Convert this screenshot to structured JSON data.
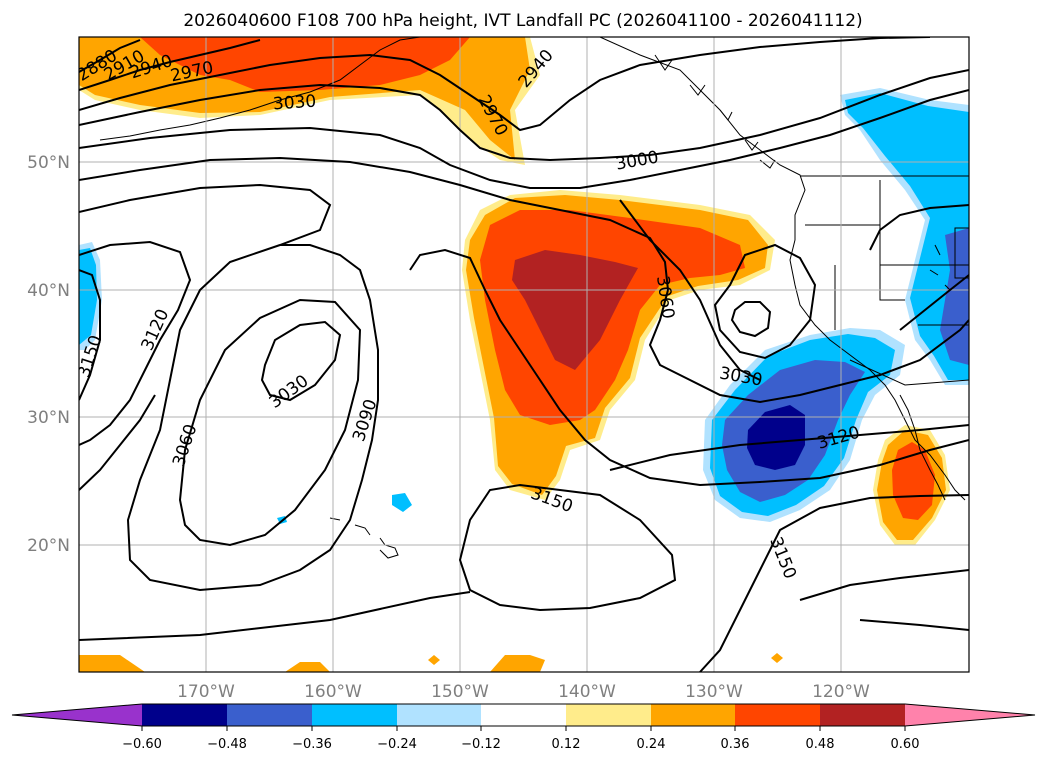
{
  "map": {
    "title": "2026040600 F108 700 hPa height, IVT Landfall PC (2026041100 - 2026041112)",
    "lon_labels": [
      "170°W",
      "160°W",
      "150°W",
      "140°W",
      "130°W",
      "120°W"
    ],
    "lat_labels": [
      "50°N",
      "40°N",
      "30°N",
      "20°N"
    ],
    "contour_labels": [
      "2880",
      "2910",
      "2940",
      "2970",
      "3030",
      "2940",
      "2970",
      "3000",
      "3060",
      "3030",
      "3120",
      "3150",
      "3120",
      "3030",
      "3060",
      "3090",
      "3150",
      "3150"
    ],
    "colorbar": {
      "ticks": [
        "−0.60",
        "−0.48",
        "−0.36",
        "−0.24",
        "−0.12",
        "0.12",
        "0.24",
        "0.36",
        "0.48",
        "0.60"
      ],
      "colors": [
        "#9932cc",
        "#00008b",
        "#3a5fcd",
        "#00bfff",
        "#b0e2ff",
        "#ffffff",
        "#ffec8b",
        "#ffa500",
        "#ff4500",
        "#b22222",
        "#ff82ab"
      ]
    }
  }
}
